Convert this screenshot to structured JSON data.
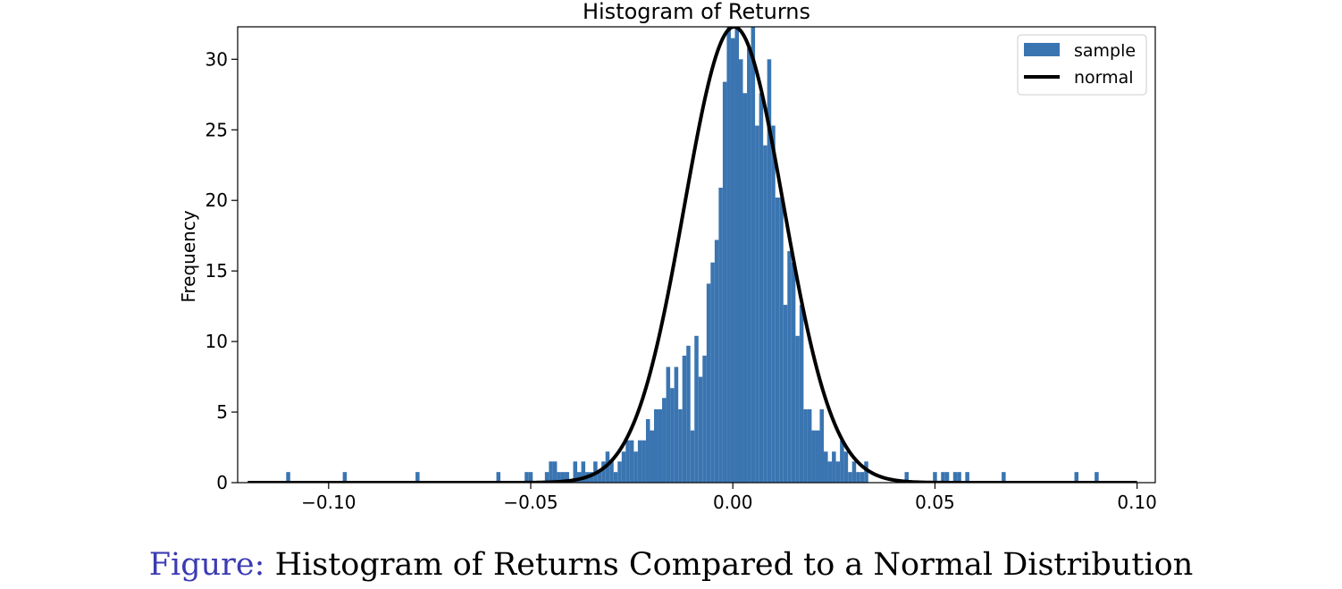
{
  "chart_data": {
    "type": "bar",
    "title": "Histogram of Returns",
    "xlabel": "",
    "ylabel": "Frequency",
    "xlim": [
      -0.1225,
      0.1045
    ],
    "ylim": [
      0,
      32.3
    ],
    "xticks": [
      -0.1,
      -0.05,
      0.0,
      0.05,
      0.1
    ],
    "xtick_labels": [
      "−0.10",
      "−0.05",
      "0.00",
      "0.05",
      "0.10"
    ],
    "yticks": [
      0,
      5,
      10,
      15,
      20,
      25,
      30
    ],
    "ytick_labels": [
      "0",
      "5",
      "10",
      "15",
      "20",
      "25",
      "30"
    ],
    "grid": false,
    "legend_position": "top-right",
    "colors": {
      "sample": "#3a75b1",
      "normal": "#000000"
    },
    "series": [
      {
        "name": "sample",
        "type": "histogram",
        "bin_width": 0.001,
        "points": [
          [
            -0.11,
            0.75
          ],
          [
            -0.096,
            0.75
          ],
          [
            -0.078,
            0.75
          ],
          [
            -0.058,
            0.75
          ],
          [
            -0.051,
            0.75
          ],
          [
            -0.05,
            0.75
          ],
          [
            -0.046,
            0.75
          ],
          [
            -0.045,
            1.5
          ],
          [
            -0.044,
            1.5
          ],
          [
            -0.043,
            0.75
          ],
          [
            -0.042,
            0.75
          ],
          [
            -0.041,
            0.75
          ],
          [
            -0.039,
            1.5
          ],
          [
            -0.038,
            0.75
          ],
          [
            -0.037,
            1.5
          ],
          [
            -0.036,
            0.75
          ],
          [
            -0.035,
            0.75
          ],
          [
            -0.034,
            1.5
          ],
          [
            -0.033,
            0.75
          ],
          [
            -0.032,
            1.5
          ],
          [
            -0.031,
            2.2
          ],
          [
            -0.03,
            1.5
          ],
          [
            -0.029,
            0.75
          ],
          [
            -0.028,
            1.5
          ],
          [
            -0.027,
            2.2
          ],
          [
            -0.026,
            3.0
          ],
          [
            -0.025,
            3.0
          ],
          [
            -0.024,
            2.2
          ],
          [
            -0.023,
            3.0
          ],
          [
            -0.022,
            3.0
          ],
          [
            -0.021,
            4.5
          ],
          [
            -0.02,
            3.7
          ],
          [
            -0.019,
            5.2
          ],
          [
            -0.018,
            5.2
          ],
          [
            -0.017,
            6.0
          ],
          [
            -0.016,
            8.2
          ],
          [
            -0.015,
            6.7
          ],
          [
            -0.014,
            8.2
          ],
          [
            -0.013,
            5.2
          ],
          [
            -0.012,
            9.0
          ],
          [
            -0.011,
            9.7
          ],
          [
            -0.01,
            3.7
          ],
          [
            -0.009,
            10.4
          ],
          [
            -0.008,
            7.5
          ],
          [
            -0.007,
            9.0
          ],
          [
            -0.006,
            14.1
          ],
          [
            -0.005,
            15.6
          ],
          [
            -0.004,
            17.2
          ],
          [
            -0.003,
            20.9
          ],
          [
            -0.002,
            28.4
          ],
          [
            -0.001,
            32.3
          ],
          [
            0.0,
            31.5
          ],
          [
            0.001,
            32.3
          ],
          [
            0.002,
            30.0
          ],
          [
            0.003,
            27.6
          ],
          [
            0.004,
            30.8
          ],
          [
            0.005,
            32.3
          ],
          [
            0.006,
            25.3
          ],
          [
            0.007,
            27.6
          ],
          [
            0.008,
            23.9
          ],
          [
            0.009,
            30.0
          ],
          [
            0.01,
            25.3
          ],
          [
            0.011,
            20.2
          ],
          [
            0.012,
            20.2
          ],
          [
            0.013,
            12.6
          ],
          [
            0.014,
            16.4
          ],
          [
            0.015,
            15.6
          ],
          [
            0.016,
            10.4
          ],
          [
            0.017,
            12.6
          ],
          [
            0.018,
            5.2
          ],
          [
            0.019,
            5.2
          ],
          [
            0.02,
            3.7
          ],
          [
            0.021,
            3.7
          ],
          [
            0.022,
            5.2
          ],
          [
            0.023,
            2.2
          ],
          [
            0.024,
            1.5
          ],
          [
            0.025,
            2.2
          ],
          [
            0.026,
            1.5
          ],
          [
            0.027,
            3.0
          ],
          [
            0.028,
            2.2
          ],
          [
            0.029,
            0.75
          ],
          [
            0.03,
            1.5
          ],
          [
            0.031,
            0.75
          ],
          [
            0.032,
            0.75
          ],
          [
            0.033,
            1.5
          ],
          [
            0.043,
            0.75
          ],
          [
            0.05,
            0.75
          ],
          [
            0.052,
            0.75
          ],
          [
            0.053,
            0.75
          ],
          [
            0.055,
            0.75
          ],
          [
            0.056,
            0.75
          ],
          [
            0.058,
            0.75
          ],
          [
            0.067,
            0.75
          ],
          [
            0.085,
            0.75
          ],
          [
            0.09,
            0.75
          ]
        ]
      },
      {
        "name": "normal",
        "type": "line",
        "distribution": "normal",
        "mean": 0.0003,
        "std": 0.0123,
        "peak": 32.3,
        "x_range": [
          -0.12,
          0.1
        ]
      }
    ]
  },
  "caption": {
    "prefix": "Figure:",
    "text": "Histogram of Returns Compared to a Normal Distribution"
  }
}
